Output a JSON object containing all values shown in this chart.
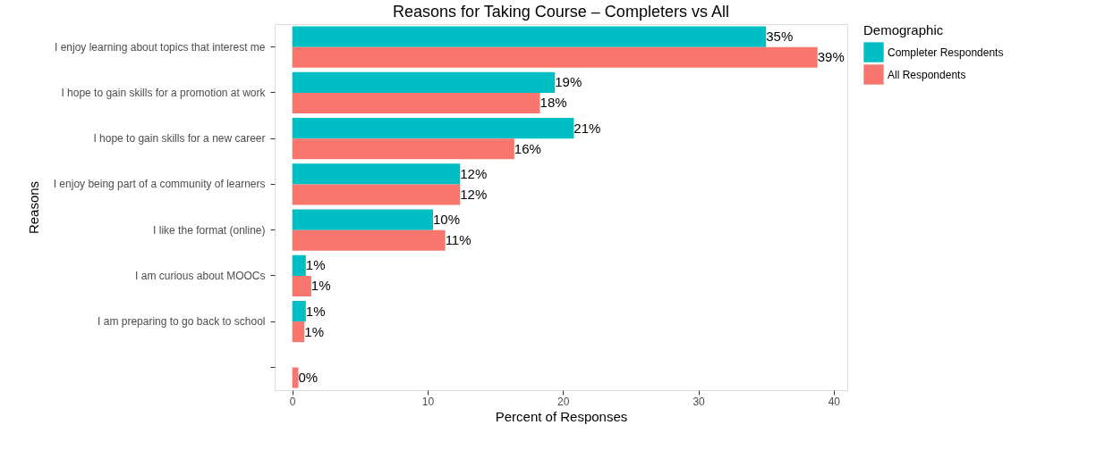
{
  "chart_data": {
    "type": "bar",
    "orientation": "horizontal",
    "title": "Reasons for Taking Course – Completers vs All",
    "xlabel": "Percent of Responses",
    "ylabel": "Reasons",
    "legend_title": "Demographic",
    "legend": "right",
    "grid": false,
    "categories": [
      "I enjoy learning about topics that interest me",
      "I hope to gain skills for a promotion at work",
      "I hope to gain skills for a new career",
      "I enjoy being part of a community of learners",
      "I like the format (online)",
      "I am curious about MOOCs",
      "I am preparing to go back to school",
      null
    ],
    "xlim": [
      -1.3,
      41
    ],
    "xticks": [
      0,
      10,
      20,
      30,
      40
    ],
    "series": [
      {
        "name": "Completer Respondents",
        "color": "#00bfc4",
        "values": [
          35.0,
          19.4,
          20.8,
          12.4,
          10.4,
          1.0,
          1.0,
          null
        ],
        "value_labels": [
          "35%",
          "19%",
          "21%",
          "12%",
          "10%",
          "1%",
          "1%",
          null
        ]
      },
      {
        "name": "All Respondents",
        "color": "#f8766d",
        "values": [
          38.8,
          18.3,
          16.4,
          12.4,
          11.3,
          1.4,
          0.9,
          0.45
        ],
        "value_labels": [
          "39%",
          "18%",
          "16%",
          "12%",
          "11%",
          "1%",
          "1%",
          "0%"
        ]
      }
    ]
  }
}
